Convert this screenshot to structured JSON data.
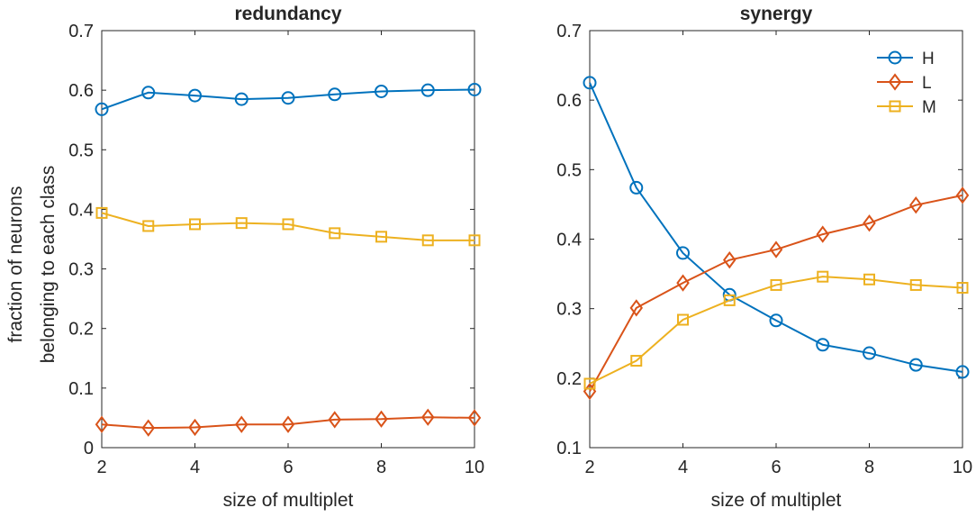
{
  "chart_data": [
    {
      "type": "line",
      "title": "redundancy",
      "xlabel": "size of multiplet",
      "ylabel": [
        "fraction of neurons",
        "belonging to each class"
      ],
      "xlim": [
        2,
        10
      ],
      "ylim": [
        0,
        0.7
      ],
      "xticks": [
        2,
        4,
        6,
        8,
        10
      ],
      "yticks": [
        0,
        0.1,
        0.2,
        0.3,
        0.4,
        0.5,
        0.6,
        0.7
      ],
      "ytick_labels": [
        "0",
        "0.1",
        "0.2",
        "0.3",
        "0.4",
        "0.5",
        "0.6",
        "0.7"
      ],
      "x": [
        2,
        3,
        4,
        5,
        6,
        7,
        8,
        9,
        10
      ],
      "series": [
        {
          "name": "H",
          "color": "#0072BD",
          "marker": "circle",
          "values": [
            0.568,
            0.596,
            0.591,
            0.585,
            0.587,
            0.593,
            0.598,
            0.6,
            0.601
          ]
        },
        {
          "name": "L",
          "color": "#D95319",
          "marker": "diamond",
          "values": [
            0.039,
            0.033,
            0.034,
            0.039,
            0.039,
            0.047,
            0.048,
            0.051,
            0.05
          ]
        },
        {
          "name": "M",
          "color": "#EDB120",
          "marker": "square",
          "values": [
            0.394,
            0.372,
            0.375,
            0.377,
            0.375,
            0.36,
            0.354,
            0.348,
            0.348
          ]
        }
      ],
      "legend": null
    },
    {
      "type": "line",
      "title": "synergy",
      "xlabel": "size of multiplet",
      "ylabel": null,
      "xlim": [
        2,
        10
      ],
      "ylim": [
        0.1,
        0.7
      ],
      "xticks": [
        2,
        4,
        6,
        8,
        10
      ],
      "yticks": [
        0.1,
        0.2,
        0.3,
        0.4,
        0.5,
        0.6,
        0.7
      ],
      "ytick_labels": [
        "0.1",
        "0.2",
        "0.3",
        "0.4",
        "0.5",
        "0.6",
        "0.7"
      ],
      "x": [
        2,
        3,
        4,
        5,
        6,
        7,
        8,
        9,
        10
      ],
      "series": [
        {
          "name": "H",
          "color": "#0072BD",
          "marker": "circle",
          "values": [
            0.625,
            0.474,
            0.38,
            0.32,
            0.283,
            0.248,
            0.236,
            0.219,
            0.209
          ]
        },
        {
          "name": "L",
          "color": "#D95319",
          "marker": "diamond",
          "values": [
            0.181,
            0.301,
            0.337,
            0.37,
            0.385,
            0.407,
            0.423,
            0.449,
            0.463
          ]
        },
        {
          "name": "M",
          "color": "#EDB120",
          "marker": "square",
          "values": [
            0.192,
            0.225,
            0.284,
            0.312,
            0.334,
            0.346,
            0.342,
            0.334,
            0.33
          ]
        }
      ],
      "legend": "top-right"
    }
  ]
}
